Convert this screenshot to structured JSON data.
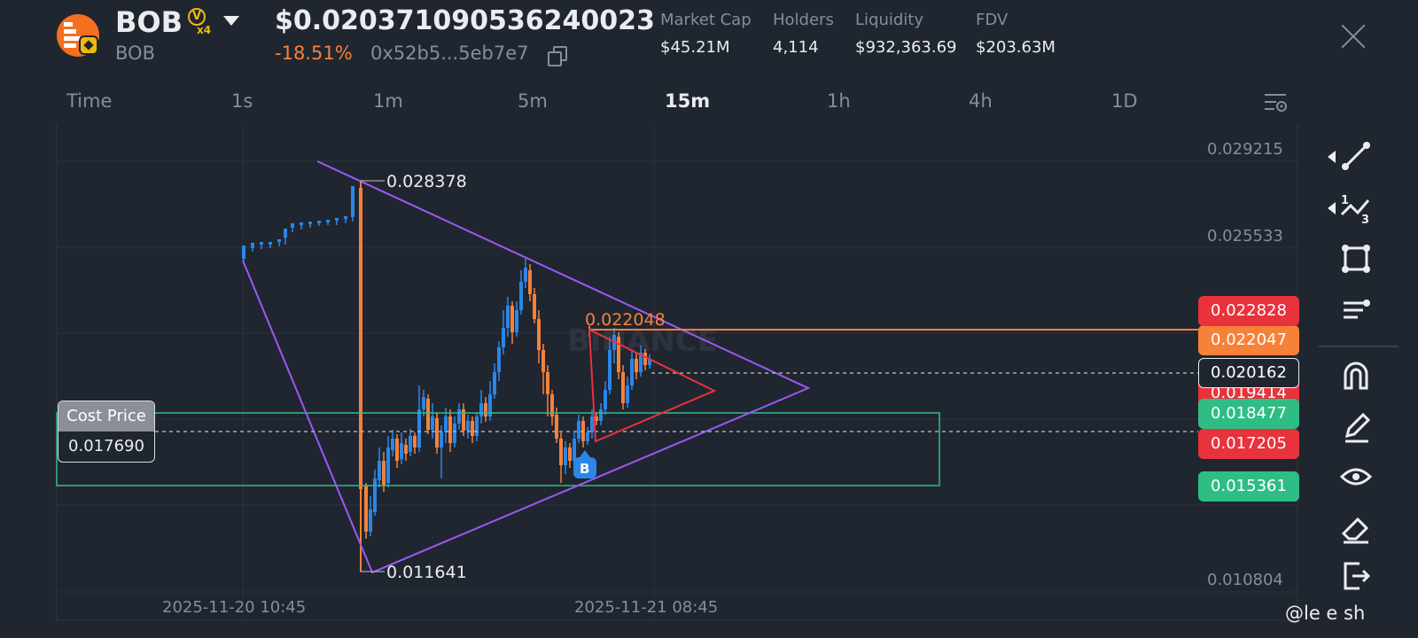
{
  "header": {
    "token_symbol": "BOB",
    "token_name": "BOB",
    "verified_badge": "V",
    "multiplier": "x4",
    "price": "$0.020371090536240023",
    "change": "-18.51%",
    "address": "0x52b5...5eb7e7",
    "colors": {
      "logo": "#f37021",
      "negative": "#f6813a",
      "badge": "#f0b90b"
    }
  },
  "stats": [
    {
      "label": "Market Cap",
      "value": "$45.21M"
    },
    {
      "label": "Holders",
      "value": "4,114"
    },
    {
      "label": "Liquidity",
      "value": "$932,363.69"
    },
    {
      "label": "FDV",
      "value": "$203.63M"
    }
  ],
  "tabs": [
    {
      "label": "Time",
      "active": false
    },
    {
      "label": "1s",
      "active": false
    },
    {
      "label": "1m",
      "active": false
    },
    {
      "label": "5m",
      "active": false
    },
    {
      "label": "15m",
      "active": true
    },
    {
      "label": "1h",
      "active": false
    },
    {
      "label": "4h",
      "active": false
    },
    {
      "label": "1D",
      "active": false
    }
  ],
  "chart": {
    "y_axis_labels": [
      "0.029215",
      "0.025533",
      "0.010804"
    ],
    "x_axis_labels": [
      "2025-11-20 10:45",
      "2025-11-21 08:45"
    ],
    "high_label": "0.028378",
    "low_label": "0.011641",
    "annotation_label": "0.022048",
    "watermark": "BINANCE",
    "buy_marker": "B",
    "cost_price": {
      "label": "Cost Price",
      "value": "0.017690"
    },
    "price_tags": [
      {
        "value": "0.022828",
        "color": "#e8323c"
      },
      {
        "value": "0.022047",
        "color": "#f6813a"
      },
      {
        "value": "0.020162",
        "color": "#202630"
      },
      {
        "value": "0.019414",
        "color": "#e8323c"
      },
      {
        "value": "0.018477",
        "color": "#2ebd85"
      },
      {
        "value": "0.017205",
        "color": "#e8323c"
      },
      {
        "value": "0.015361",
        "color": "#2ebd85"
      }
    ],
    "colors": {
      "up": "#2a86e8",
      "down": "#f6813a",
      "triangle": "#9b59f5",
      "small_triangle": "#e8323c",
      "range_box": "#2ebd85"
    }
  },
  "toolbar": {
    "tools": [
      "trend-line-icon",
      "fibonacci-icon",
      "shape-icon",
      "text-line-icon",
      "magnet-icon",
      "pen-icon",
      "eye-icon",
      "eraser-icon",
      "exit-icon"
    ]
  },
  "footer": {
    "user_handle": "@le e sh"
  }
}
